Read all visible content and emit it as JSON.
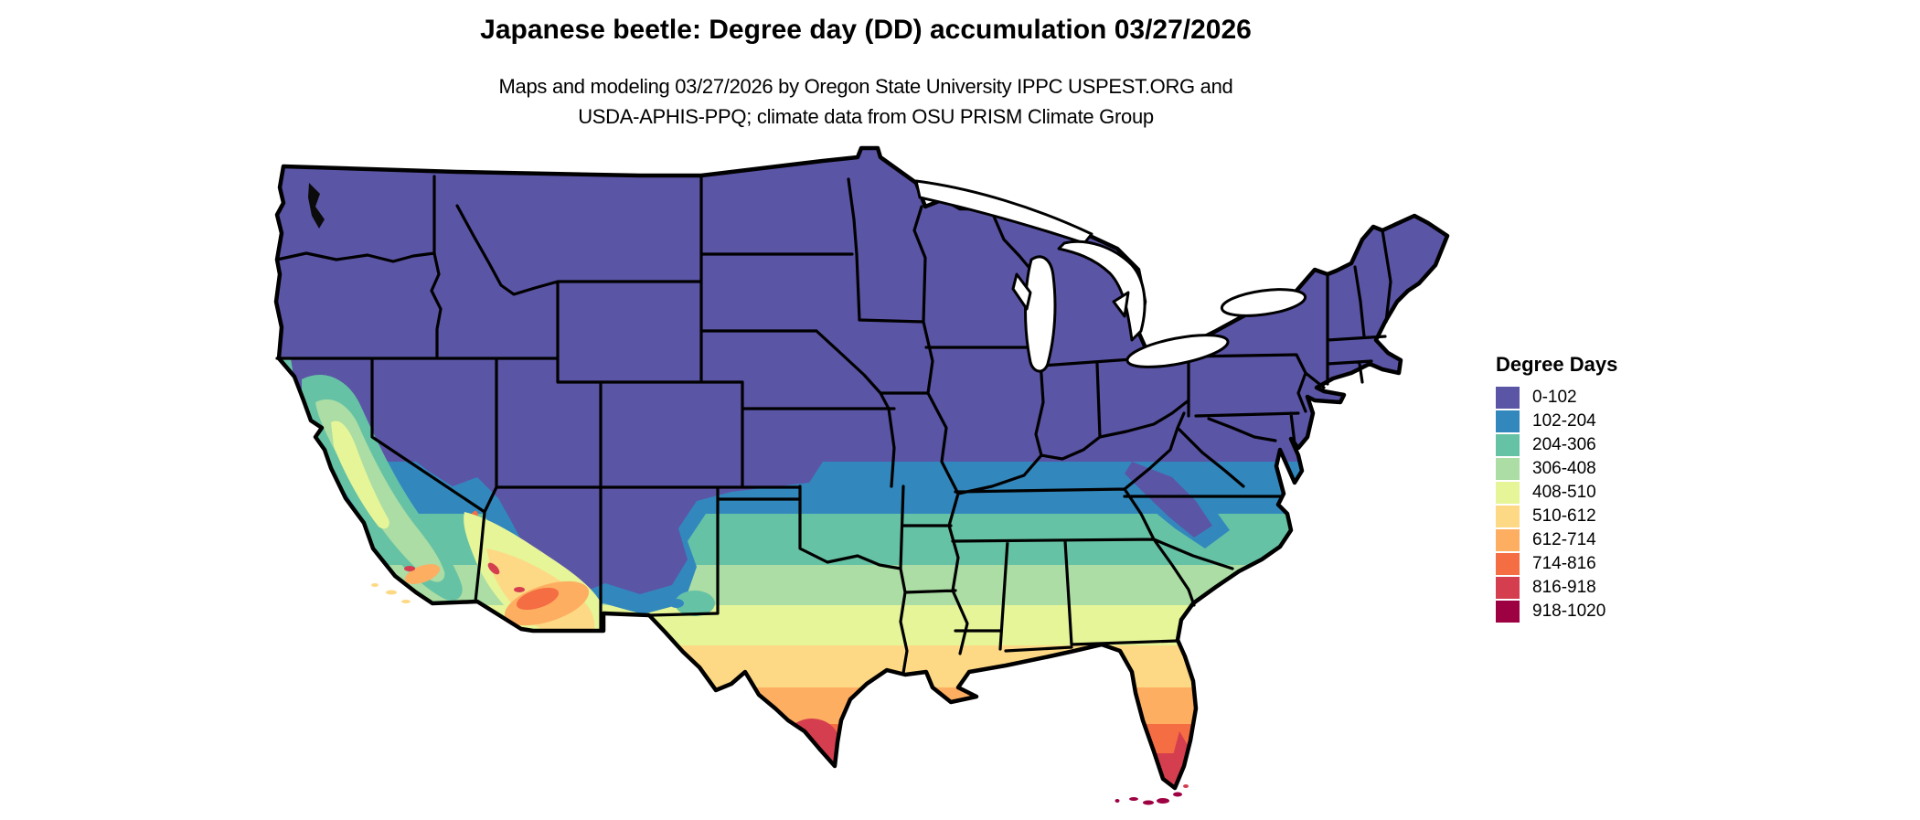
{
  "header": {
    "title": "Japanese beetle: Degree day (DD) accumulation 03/27/2026",
    "subtitle_line1": "Maps and modeling 03/27/2026 by Oregon State University IPPC USPEST.ORG and",
    "subtitle_line2": "USDA-APHIS-PPQ; climate data from OSU PRISM Climate Group"
  },
  "legend": {
    "title": "Degree Days",
    "items": [
      {
        "label": "0-102",
        "color": "#5b55a6"
      },
      {
        "label": "102-204",
        "color": "#3288bd"
      },
      {
        "label": "204-306",
        "color": "#66c2a5"
      },
      {
        "label": "306-408",
        "color": "#abdda4"
      },
      {
        "label": "408-510",
        "color": "#e6f598"
      },
      {
        "label": "510-612",
        "color": "#fdd985"
      },
      {
        "label": "612-714",
        "color": "#fdae61"
      },
      {
        "label": "714-816",
        "color": "#f46d43"
      },
      {
        "label": "816-918",
        "color": "#d53e4f"
      },
      {
        "label": "918-1020",
        "color": "#9e0142"
      }
    ]
  },
  "map": {
    "region": "Contiguous United States",
    "kind": "degree-day accumulation choropleth raster with state borders",
    "border_color": "#000000",
    "water_color": "#ffffff"
  },
  "chart_data": {
    "type": "heatmap",
    "title": "Japanese beetle: Degree day (DD) accumulation 03/27/2026",
    "legend_title": "Degree Days",
    "bins": [
      {
        "range": "0-102",
        "color": "#5b55a6"
      },
      {
        "range": "102-204",
        "color": "#3288bd"
      },
      {
        "range": "204-306",
        "color": "#66c2a5"
      },
      {
        "range": "306-408",
        "color": "#abdda4"
      },
      {
        "range": "408-510",
        "color": "#e6f598"
      },
      {
        "range": "510-612",
        "color": "#fdd985"
      },
      {
        "range": "612-714",
        "color": "#fdae61"
      },
      {
        "range": "714-816",
        "color": "#f46d43"
      },
      {
        "range": "816-918",
        "color": "#d53e4f"
      },
      {
        "range": "918-1020",
        "color": "#9e0142"
      }
    ],
    "legend_position": "right",
    "pattern_notes": "Northern US, Rockies and Appalachians 0-102 DD; bands increase southward through 102-204 (Kansas to Virginia), 204-408 (Oklahoma, Tennessee, Carolinas), 408-612 (central Texas, Gulf states, north Florida), 612-816 (south Texas coast, central Florida, Arizona lowlands), 816-1020 at the south Texas tip, south Florida and the Keys; warm anomalies in California valleys and southwest deserts."
  }
}
